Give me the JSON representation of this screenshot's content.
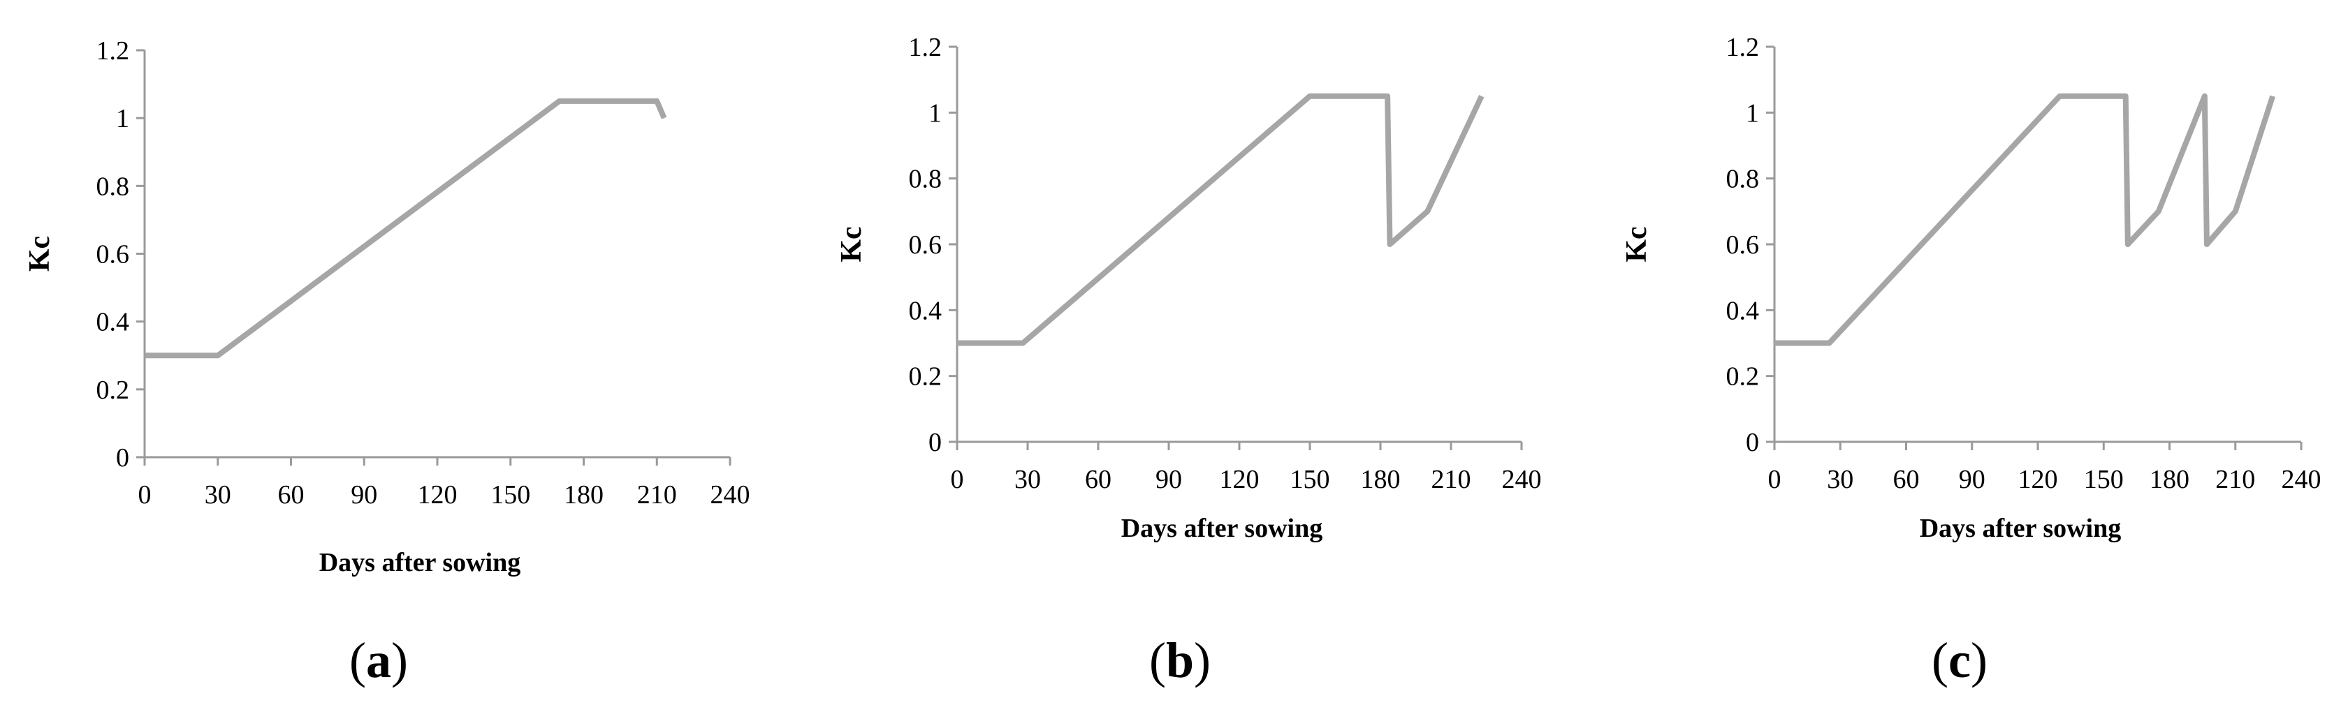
{
  "chart_data": [
    {
      "type": "line",
      "panel_label": "a",
      "xlabel": "Days after sowing",
      "ylabel": "Kc",
      "xlim": [
        0,
        240
      ],
      "ylim": [
        0,
        1.2
      ],
      "x_ticks": [
        "0",
        "30",
        "60",
        "90",
        "120",
        "150",
        "180",
        "210",
        "240"
      ],
      "y_ticks": [
        "0",
        "0.2",
        "0.4",
        "0.6",
        "0.8",
        "1",
        "1.2"
      ],
      "series": [
        {
          "name": "Kc",
          "color": "#a6a6a6",
          "x": [
            0,
            30,
            170,
            210,
            213
          ],
          "y": [
            0.3,
            0.3,
            1.05,
            1.05,
            1.0
          ]
        }
      ]
    },
    {
      "type": "line",
      "panel_label": "b",
      "xlabel": "Days after sowing",
      "ylabel": "Kc",
      "xlim": [
        0,
        240
      ],
      "ylim": [
        0,
        1.2
      ],
      "x_ticks": [
        "0",
        "30",
        "60",
        "90",
        "120",
        "150",
        "180",
        "210",
        "240"
      ],
      "y_ticks": [
        "0",
        "0.2",
        "0.4",
        "0.6",
        "0.8",
        "1",
        "1.2"
      ],
      "series": [
        {
          "name": "Kc",
          "color": "#a6a6a6",
          "x": [
            0,
            28,
            150,
            183,
            184,
            200,
            223
          ],
          "y": [
            0.3,
            0.3,
            1.05,
            1.05,
            0.6,
            0.7,
            1.05
          ]
        }
      ]
    },
    {
      "type": "line",
      "panel_label": "c",
      "xlabel": "Days after sowing",
      "ylabel": "Kc",
      "xlim": [
        0,
        240
      ],
      "ylim": [
        0,
        1.2
      ],
      "x_ticks": [
        "0",
        "30",
        "60",
        "90",
        "120",
        "150",
        "180",
        "210",
        "240"
      ],
      "y_ticks": [
        "0",
        "0.2",
        "0.4",
        "0.6",
        "0.8",
        "1",
        "1.2"
      ],
      "series": [
        {
          "name": "Kc",
          "color": "#a6a6a6",
          "x": [
            0,
            25,
            130,
            160,
            161,
            175,
            196,
            197,
            210,
            227
          ],
          "y": [
            0.3,
            0.3,
            1.05,
            1.05,
            0.6,
            0.7,
            1.05,
            0.6,
            0.7,
            1.05
          ]
        }
      ]
    }
  ]
}
